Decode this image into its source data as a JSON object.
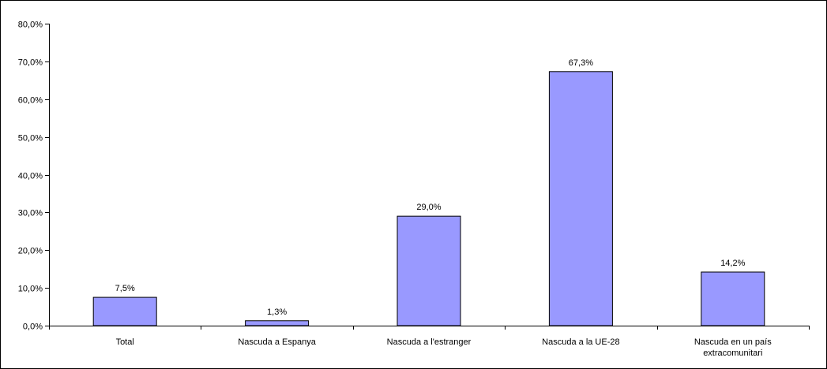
{
  "chart_data": {
    "type": "bar",
    "categories": [
      [
        "Total"
      ],
      [
        "Nascuda a Espanya"
      ],
      [
        "Nascuda a l'estranger"
      ],
      [
        "Nascuda a la UE-28"
      ],
      [
        "Nascuda en un país",
        "extracomunitari"
      ]
    ],
    "values": [
      7.5,
      1.3,
      29.0,
      67.3,
      14.2
    ],
    "data_labels": [
      "7,5%",
      "1,3%",
      "29,0%",
      "67,3%",
      "14,2%"
    ],
    "ylim": [
      0,
      80
    ],
    "yticks": [
      0,
      10,
      20,
      30,
      40,
      50,
      60,
      70,
      80
    ],
    "ytick_labels": [
      "0,0%",
      "10,0%",
      "20,0%",
      "30,0%",
      "40,0%",
      "50,0%",
      "60,0%",
      "70,0%",
      "80,0%"
    ],
    "grid": false,
    "legend": "none",
    "bar_color": "#9999ff",
    "bar_edge_color": "#000000"
  }
}
